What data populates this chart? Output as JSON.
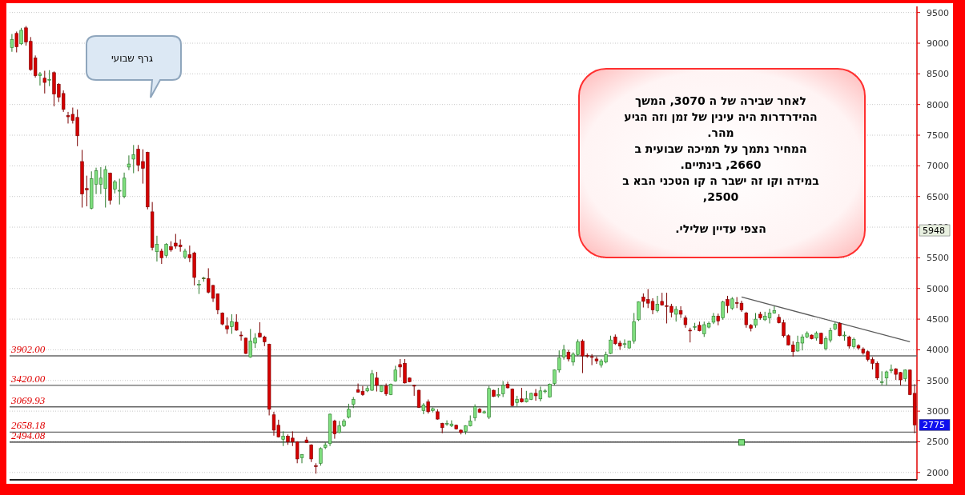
{
  "chart_data": {
    "type": "candlestick",
    "categories": [
      null,
      null,
      null,
      null,
      null,
      null,
      null,
      null,
      null,
      null,
      null,
      null,
      null,
      null,
      null,
      null,
      null,
      null,
      null,
      null,
      null,
      null,
      null,
      null,
      null,
      null,
      null,
      null,
      null,
      null,
      null,
      null,
      null,
      null,
      null,
      null,
      null,
      null,
      null,
      null,
      null,
      null,
      null,
      null,
      null,
      null,
      null,
      null,
      null,
      null,
      null,
      null,
      null,
      null,
      null,
      null,
      null,
      null,
      null,
      null,
      null,
      null,
      null,
      null,
      null,
      null,
      null,
      null,
      null,
      null,
      null,
      null,
      null,
      null,
      null,
      null,
      null,
      null,
      null,
      null,
      null,
      null,
      null,
      null,
      null,
      null,
      null,
      null,
      null,
      null,
      null,
      null,
      null,
      null,
      null,
      null,
      null,
      null,
      null,
      null,
      null,
      null,
      null,
      null,
      null,
      null,
      null,
      null,
      null,
      null,
      null,
      null,
      null,
      null,
      null,
      null,
      null,
      null,
      null,
      null,
      null,
      null,
      null,
      null,
      null,
      null,
      null,
      null,
      null,
      null,
      null,
      null,
      null,
      null,
      null,
      null,
      null,
      null,
      null,
      null,
      null,
      null,
      null,
      null,
      null,
      null,
      null,
      null,
      null,
      null,
      null,
      null,
      null,
      null,
      null,
      null,
      null,
      null,
      null,
      null,
      null,
      null,
      null,
      null,
      null,
      null,
      null,
      null,
      null,
      null,
      null,
      null,
      null,
      null,
      null,
      null,
      null,
      null,
      null,
      null,
      null,
      null,
      null,
      null,
      null,
      null,
      null,
      null,
      null,
      null,
      null,
      null,
      null,
      null
    ],
    "ohlc": [
      [
        8930,
        9150,
        8860,
        9060
      ],
      [
        9160,
        9190,
        8850,
        8940
      ],
      [
        8990,
        9250,
        8970,
        9210
      ],
      [
        9250,
        9280,
        8960,
        9020
      ],
      [
        9030,
        9100,
        8550,
        8570
      ],
      [
        8760,
        8800,
        8440,
        8470
      ],
      [
        8470,
        8530,
        8310,
        8500
      ],
      [
        8430,
        8550,
        8180,
        8360
      ],
      [
        8400,
        8560,
        8300,
        8410
      ],
      [
        8520,
        8540,
        7970,
        8170
      ],
      [
        8330,
        8350,
        8040,
        8120
      ],
      [
        8180,
        8230,
        7880,
        7920
      ],
      [
        7820,
        7880,
        7690,
        7800
      ],
      [
        7840,
        7950,
        7690,
        7740
      ],
      [
        7790,
        7920,
        7320,
        7490
      ],
      [
        7070,
        7260,
        6320,
        6540
      ],
      [
        6630,
        6840,
        6340,
        6610
      ],
      [
        6310,
        6910,
        6290,
        6790
      ],
      [
        6700,
        6970,
        6540,
        6920
      ],
      [
        6700,
        6980,
        6540,
        6800
      ],
      [
        6630,
        7000,
        6320,
        6940
      ],
      [
        6880,
        6890,
        6370,
        6440
      ],
      [
        6620,
        6770,
        6550,
        6740
      ],
      [
        6600,
        6790,
        6370,
        6600
      ],
      [
        6500,
        6890,
        6470,
        6800
      ],
      [
        6980,
        7170,
        6930,
        7030
      ],
      [
        7110,
        7340,
        6880,
        7180
      ],
      [
        7270,
        7340,
        6910,
        7010
      ],
      [
        7070,
        7270,
        6710,
        6960
      ],
      [
        7220,
        7230,
        6290,
        6330
      ],
      [
        6250,
        6410,
        5620,
        5670
      ],
      [
        5600,
        5860,
        5440,
        5720
      ],
      [
        5610,
        5650,
        5400,
        5500
      ],
      [
        5540,
        5740,
        5500,
        5720
      ],
      [
        5680,
        5770,
        5600,
        5630
      ],
      [
        5740,
        5890,
        5650,
        5690
      ],
      [
        5710,
        5800,
        5600,
        5680
      ],
      [
        5510,
        5650,
        5480,
        5610
      ],
      [
        5550,
        5700,
        5430,
        5500
      ],
      [
        5580,
        5600,
        5050,
        5180
      ],
      [
        5070,
        5140,
        4910,
        5070
      ],
      [
        5170,
        5190,
        5110,
        5170
      ],
      [
        5160,
        5330,
        4920,
        4940
      ],
      [
        5050,
        5060,
        4780,
        4840
      ],
      [
        4910,
        4920,
        4580,
        4650
      ],
      [
        4600,
        4610,
        4400,
        4420
      ],
      [
        4390,
        4530,
        4260,
        4340
      ],
      [
        4380,
        4580,
        4260,
        4460
      ],
      [
        4450,
        4580,
        4310,
        4320
      ],
      [
        4240,
        4300,
        4150,
        4230
      ],
      [
        4190,
        4200,
        3930,
        3940
      ],
      [
        3880,
        4340,
        3870,
        4140
      ],
      [
        4110,
        4270,
        4030,
        4190
      ],
      [
        4270,
        4450,
        4200,
        4210
      ],
      [
        4210,
        4230,
        4060,
        4130
      ],
      [
        4090,
        4100,
        2930,
        3030
      ],
      [
        2940,
        2990,
        2600,
        2690
      ],
      [
        2770,
        2860,
        2570,
        2580
      ],
      [
        2540,
        2670,
        2430,
        2590
      ],
      [
        2590,
        2620,
        2450,
        2500
      ],
      [
        2560,
        2670,
        2430,
        2500
      ],
      [
        2500,
        2510,
        2150,
        2220
      ],
      [
        2240,
        2300,
        2150,
        2290
      ],
      [
        2530,
        2580,
        2480,
        2490
      ],
      [
        2450,
        2460,
        2170,
        2220
      ],
      [
        2110,
        2150,
        1980,
        2100
      ],
      [
        2150,
        2410,
        2110,
        2390
      ],
      [
        2410,
        2490,
        2380,
        2450
      ],
      [
        2470,
        2960,
        2430,
        2950
      ],
      [
        2840,
        2860,
        2550,
        2630
      ],
      [
        2650,
        2840,
        2640,
        2760
      ],
      [
        2760,
        2870,
        2740,
        2840
      ],
      [
        2900,
        3120,
        2880,
        3030
      ],
      [
        3110,
        3230,
        3050,
        3190
      ],
      [
        3350,
        3450,
        3300,
        3310
      ],
      [
        3320,
        3410,
        3250,
        3270
      ],
      [
        3330,
        3410,
        3310,
        3370
      ],
      [
        3340,
        3670,
        3330,
        3610
      ],
      [
        3540,
        3640,
        3320,
        3420
      ],
      [
        3320,
        3420,
        3310,
        3410
      ],
      [
        3410,
        3450,
        3250,
        3280
      ],
      [
        3270,
        3450,
        3260,
        3440
      ],
      [
        3490,
        3740,
        3480,
        3670
      ],
      [
        3760,
        3850,
        3550,
        3720
      ],
      [
        3780,
        3850,
        3450,
        3460
      ],
      [
        3540,
        3550,
        3470,
        3480
      ],
      [
        3420,
        3430,
        3250,
        3410
      ],
      [
        3340,
        3350,
        3050,
        3060
      ],
      [
        3010,
        3130,
        2950,
        3100
      ],
      [
        3150,
        3190,
        2960,
        2990
      ],
      [
        3010,
        3060,
        2980,
        3040
      ],
      [
        2990,
        3030,
        2860,
        2870
      ],
      [
        2800,
        2810,
        2640,
        2730
      ],
      [
        2790,
        2850,
        2760,
        2800
      ],
      [
        2760,
        2850,
        2740,
        2790
      ],
      [
        2770,
        2780,
        2700,
        2710
      ],
      [
        2690,
        2700,
        2620,
        2650
      ],
      [
        2670,
        2770,
        2620,
        2760
      ],
      [
        2760,
        2930,
        2750,
        2840
      ],
      [
        2890,
        3110,
        2840,
        3070
      ],
      [
        3030,
        3050,
        2970,
        2980
      ],
      [
        2970,
        3010,
        2960,
        2990
      ],
      [
        2900,
        3410,
        2870,
        3370
      ],
      [
        3340,
        3350,
        3230,
        3240
      ],
      [
        3250,
        3380,
        3220,
        3270
      ],
      [
        3280,
        3490,
        3230,
        3420
      ],
      [
        3440,
        3480,
        3370,
        3380
      ],
      [
        3360,
        3370,
        3080,
        3090
      ],
      [
        3140,
        3250,
        3080,
        3190
      ],
      [
        3200,
        3380,
        3140,
        3150
      ],
      [
        3150,
        3330,
        3140,
        3200
      ],
      [
        3190,
        3300,
        3180,
        3290
      ],
      [
        3290,
        3360,
        3170,
        3250
      ],
      [
        3200,
        3400,
        3160,
        3330
      ],
      [
        3320,
        3360,
        3290,
        3330
      ],
      [
        3230,
        3450,
        3220,
        3440
      ],
      [
        3450,
        3680,
        3420,
        3670
      ],
      [
        3670,
        3990,
        3630,
        3870
      ],
      [
        3880,
        4080,
        3840,
        4000
      ],
      [
        3960,
        4000,
        3810,
        3850
      ],
      [
        3800,
        3960,
        3740,
        3930
      ],
      [
        3920,
        4170,
        3900,
        4130
      ],
      [
        4140,
        4170,
        3620,
        3900
      ],
      [
        3910,
        3940,
        3870,
        3900
      ],
      [
        3890,
        3930,
        3750,
        3880
      ],
      [
        3850,
        3890,
        3770,
        3820
      ],
      [
        3750,
        3850,
        3710,
        3820
      ],
      [
        3800,
        3970,
        3780,
        3920
      ],
      [
        3940,
        4230,
        3930,
        4160
      ],
      [
        4210,
        4250,
        4080,
        4100
      ],
      [
        4110,
        4150,
        4000,
        4060
      ],
      [
        4090,
        4170,
        4030,
        4100
      ],
      [
        4030,
        4150,
        4020,
        4140
      ],
      [
        4140,
        4600,
        4100,
        4460
      ],
      [
        4490,
        4790,
        4470,
        4780
      ],
      [
        4860,
        4920,
        4690,
        4790
      ],
      [
        4820,
        4990,
        4680,
        4760
      ],
      [
        4790,
        4840,
        4580,
        4650
      ],
      [
        4640,
        4880,
        4610,
        4740
      ],
      [
        4790,
        4930,
        4720,
        4730
      ],
      [
        4720,
        4930,
        4430,
        4710
      ],
      [
        4710,
        4750,
        4530,
        4610
      ],
      [
        4580,
        4710,
        4460,
        4660
      ],
      [
        4640,
        4710,
        4520,
        4580
      ],
      [
        4520,
        4560,
        4360,
        4410
      ],
      [
        4320,
        4360,
        4120,
        4310
      ],
      [
        4370,
        4440,
        4320,
        4380
      ],
      [
        4400,
        4460,
        4300,
        4310
      ],
      [
        4260,
        4460,
        4210,
        4410
      ],
      [
        4370,
        4460,
        4350,
        4430
      ],
      [
        4450,
        4600,
        4420,
        4550
      ],
      [
        4550,
        4590,
        4400,
        4470
      ],
      [
        4520,
        4800,
        4490,
        4780
      ],
      [
        4820,
        4880,
        4600,
        4720
      ],
      [
        4680,
        4860,
        4650,
        4830
      ],
      [
        4770,
        4860,
        4680,
        4760
      ],
      [
        4760,
        4800,
        4620,
        4650
      ],
      [
        4600,
        4620,
        4360,
        4410
      ],
      [
        4400,
        4420,
        4300,
        4350
      ],
      [
        4400,
        4600,
        4360,
        4500
      ],
      [
        4580,
        4620,
        4490,
        4520
      ],
      [
        4490,
        4620,
        4470,
        4550
      ],
      [
        4520,
        4670,
        4430,
        4600
      ],
      [
        4600,
        4710,
        4590,
        4640
      ],
      [
        4530,
        4580,
        4430,
        4440
      ],
      [
        4440,
        4490,
        4200,
        4230
      ],
      [
        4230,
        4250,
        4070,
        4080
      ],
      [
        4080,
        4140,
        3890,
        3970
      ],
      [
        3980,
        4230,
        3970,
        4120
      ],
      [
        4110,
        4250,
        3990,
        4210
      ],
      [
        4210,
        4300,
        4190,
        4270
      ],
      [
        4240,
        4250,
        4170,
        4180
      ],
      [
        4190,
        4300,
        4150,
        4270
      ],
      [
        4270,
        4280,
        4090,
        4100
      ],
      [
        4020,
        4220,
        3990,
        4180
      ],
      [
        4160,
        4360,
        4120,
        4310
      ],
      [
        4340,
        4450,
        4320,
        4420
      ],
      [
        4430,
        4450,
        4220,
        4230
      ],
      [
        4230,
        4300,
        4150,
        4240
      ],
      [
        4210,
        4230,
        4020,
        4060
      ],
      [
        4050,
        4200,
        4020,
        4170
      ],
      [
        4070,
        4090,
        4000,
        4030
      ],
      [
        4010,
        4040,
        3920,
        3950
      ],
      [
        3970,
        3990,
        3810,
        3840
      ],
      [
        3840,
        3880,
        3680,
        3780
      ],
      [
        3780,
        3810,
        3510,
        3540
      ],
      [
        3470,
        3650,
        3420,
        3480
      ],
      [
        3540,
        3660,
        3420,
        3640
      ],
      [
        3660,
        3760,
        3620,
        3680
      ],
      [
        3690,
        3700,
        3510,
        3600
      ],
      [
        3630,
        3640,
        3420,
        3510
      ],
      [
        3530,
        3680,
        3480,
        3670
      ],
      [
        3670,
        3680,
        3260,
        3270
      ],
      [
        3290,
        3440,
        2640,
        2775
      ]
    ],
    "colors": [
      "#7fdf7f",
      "#d40000",
      "#7fdf7f",
      "#d40000",
      "#d40000",
      "#d40000",
      "#7fdf7f",
      "#d40000",
      "#7fdf7f",
      "#d40000",
      "#d40000",
      "#d40000",
      "#d40000",
      "#d40000",
      "#d40000",
      "#d40000",
      "#d40000",
      "#7fdf7f",
      "#7fdf7f",
      "#7fdf7f",
      "#7fdf7f",
      "#d40000",
      "#7fdf7f",
      "#7fdf7f",
      "#7fdf7f",
      "#7fdf7f",
      "#7fdf7f",
      "#d40000",
      "#d40000",
      "#d40000",
      "#d40000",
      "#7fdf7f",
      "#d40000",
      "#7fdf7f",
      "#d40000",
      "#d40000",
      "#d40000",
      "#7fdf7f",
      "#d40000",
      "#d40000",
      "#7fdf7f",
      "#d40000",
      "#d40000",
      "#d40000",
      "#d40000",
      "#d40000",
      "#d40000",
      "#7fdf7f",
      "#d40000",
      "#d40000",
      "#d40000",
      "#7fdf7f",
      "#7fdf7f",
      "#d40000",
      "#d40000",
      "#d40000",
      "#d40000",
      "#d40000",
      "#7fdf7f",
      "#d40000",
      "#d40000",
      "#d40000",
      "#7fdf7f",
      "#d40000",
      "#d40000",
      "#d40000",
      "#7fdf7f",
      "#7fdf7f",
      "#7fdf7f",
      "#d40000",
      "#7fdf7f",
      "#7fdf7f",
      "#7fdf7f",
      "#7fdf7f",
      "#d40000",
      "#d40000",
      "#7fdf7f",
      "#7fdf7f",
      "#d40000",
      "#7fdf7f",
      "#d40000",
      "#7fdf7f",
      "#7fdf7f",
      "#d40000",
      "#d40000",
      "#d40000",
      "#d40000",
      "#d40000",
      "#7fdf7f",
      "#d40000",
      "#7fdf7f",
      "#d40000",
      "#d40000",
      "#7fdf7f",
      "#7fdf7f",
      "#d40000",
      "#d40000",
      "#7fdf7f",
      "#7fdf7f",
      "#7fdf7f",
      "#d40000",
      "#7fdf7f",
      "#7fdf7f",
      "#d40000",
      "#7fdf7f",
      "#7fdf7f",
      "#d40000",
      "#d40000",
      "#7fdf7f",
      "#d40000",
      "#7fdf7f",
      "#7fdf7f",
      "#d40000",
      "#7fdf7f",
      "#7fdf7f",
      "#7fdf7f",
      "#7fdf7f",
      "#7fdf7f",
      "#7fdf7f",
      "#d40000",
      "#7fdf7f",
      "#7fdf7f",
      "#d40000",
      "#d40000",
      "#d40000",
      "#d40000",
      "#7fdf7f",
      "#7fdf7f",
      "#7fdf7f",
      "#d40000",
      "#d40000",
      "#7fdf7f",
      "#7fdf7f",
      "#7fdf7f",
      "#7fdf7f",
      "#d40000",
      "#d40000",
      "#d40000",
      "#7fdf7f",
      "#d40000",
      "#d40000",
      "#d40000",
      "#7fdf7f",
      "#d40000",
      "#d40000",
      "#d40000",
      "#7fdf7f",
      "#d40000",
      "#7fdf7f",
      "#7fdf7f",
      "#7fdf7f",
      "#d40000",
      "#7fdf7f",
      "#d40000",
      "#7fdf7f",
      "#d40000",
      "#d40000",
      "#d40000",
      "#d40000",
      "#7fdf7f",
      "#d40000",
      "#7fdf7f",
      "#7fdf7f",
      "#7fdf7f",
      "#d40000",
      "#d40000",
      "#d40000",
      "#d40000",
      "#7fdf7f",
      "#7fdf7f",
      "#7fdf7f",
      "#d40000",
      "#7fdf7f",
      "#d40000",
      "#7fdf7f",
      "#7fdf7f",
      "#7fdf7f",
      "#d40000",
      "#7fdf7f",
      "#d40000",
      "#7fdf7f",
      "#d40000",
      "#d40000",
      "#d40000",
      "#d40000",
      "#d40000",
      "#7fdf7f",
      "#7fdf7f",
      "#7fdf7f",
      "#d40000",
      "#d40000",
      "#7fdf7f",
      "#d40000",
      "#d40000"
    ],
    "series": [
      {
        "type": "line",
        "values": [
          null,
          null,
          null,
          null,
          null,
          null,
          null,
          null,
          null,
          null,
          null,
          null,
          null,
          null,
          null,
          null,
          null,
          null,
          null,
          null,
          null,
          null,
          null,
          null,
          null,
          null,
          null,
          null,
          null,
          null,
          null,
          null,
          null,
          null,
          null,
          null,
          null,
          null,
          null,
          null,
          null,
          null,
          null,
          null,
          null,
          null,
          null,
          null,
          null,
          null,
          null,
          null,
          null,
          null,
          null,
          null,
          null,
          null,
          null,
          null,
          null,
          null,
          null,
          null,
          null,
          null,
          null,
          null,
          null,
          null,
          null,
          null,
          null,
          null,
          null,
          null,
          null,
          null,
          null,
          null,
          null,
          null,
          null,
          null,
          null,
          null,
          null,
          null,
          null,
          null,
          null,
          null,
          null,
          null,
          null,
          null,
          null,
          null,
          null,
          null,
          null,
          null,
          null,
          null,
          null,
          null,
          null,
          null,
          null,
          null,
          null,
          null,
          null,
          null,
          null,
          null,
          null,
          null,
          null,
          null,
          null,
          null,
          null,
          null,
          null,
          null,
          null,
          null,
          null,
          null,
          null,
          null,
          null,
          null,
          null,
          null,
          null,
          null,
          null,
          null,
          null,
          null,
          null,
          null,
          null,
          null,
          null,
          null,
          null,
          null,
          null,
          null,
          null,
          null,
          null,
          null,
          4860,
          null,
          null,
          null,
          null,
          null,
          null,
          null,
          null,
          null,
          null,
          null,
          null,
          null,
          null,
          null,
          null,
          null,
          null,
          null,
          null,
          null,
          null,
          null,
          null,
          null,
          null,
          null,
          null,
          null,
          null,
          null,
          null,
          null,
          null,
          null,
          4130,
          null
        ],
        "color": "#5a5a5a"
      },
      {
        "type": "scatter",
        "values": [
          null,
          null,
          null,
          null,
          null,
          null,
          null,
          null,
          null,
          null,
          null,
          null,
          null,
          null,
          null,
          null,
          null,
          null,
          null,
          null,
          null,
          null,
          null,
          null,
          null,
          null,
          null,
          null,
          null,
          null,
          null,
          null,
          null,
          null,
          null,
          null,
          null,
          null,
          null,
          null,
          null,
          null,
          null,
          null,
          null,
          null,
          null,
          null,
          null,
          null,
          null,
          null,
          null,
          null,
          null,
          null,
          null,
          null,
          null,
          null,
          null,
          null,
          null,
          null,
          null,
          null,
          null,
          null,
          null,
          null,
          null,
          null,
          null,
          null,
          null,
          null,
          null,
          null,
          null,
          null,
          null,
          null,
          null,
          null,
          null,
          null,
          null,
          null,
          null,
          null,
          null,
          null,
          null,
          null,
          null,
          null,
          null,
          null,
          null,
          null,
          null,
          null,
          null,
          null,
          null,
          null,
          null,
          null,
          null,
          null,
          null,
          null,
          null,
          null,
          null,
          null,
          null,
          null,
          null,
          null,
          null,
          null,
          null,
          null,
          null,
          null,
          null,
          null,
          null,
          null,
          null,
          null,
          null,
          null,
          null,
          null,
          null,
          null,
          null,
          null,
          null,
          null,
          null,
          null,
          null,
          null,
          null,
          null,
          null,
          null,
          null,
          null,
          null,
          null,
          null,
          null,
          2490,
          null,
          null,
          null,
          null,
          null,
          null,
          null,
          null,
          null,
          null,
          null,
          null,
          null,
          null,
          null,
          null,
          null,
          null,
          null,
          null,
          null,
          null,
          null,
          null,
          null,
          null,
          null,
          null,
          null,
          null,
          null,
          null,
          null,
          null,
          null,
          null,
          null
        ],
        "color": "#7fdf7f",
        "marker": "square"
      }
    ],
    "ylim": [
      1880,
      9600
    ],
    "yticks": [
      2000,
      2500,
      3000,
      3500,
      4000,
      4500,
      5000,
      5500,
      6000,
      6500,
      7000,
      7500,
      8000,
      8500,
      9000,
      9500
    ],
    "grid": "y",
    "ref_lines": [
      {
        "axis": "y",
        "value": 3902,
        "label": "3902.00",
        "color": "#666666"
      },
      {
        "axis": "y",
        "value": 3420,
        "label": "3420.00",
        "color": "#666666"
      },
      {
        "axis": "y",
        "value": 3069.93,
        "label": "3069.93",
        "color": "#666666"
      },
      {
        "axis": "y",
        "value": 2658.18,
        "label": "2658.18",
        "color": "#666666"
      },
      {
        "axis": "y",
        "value": 2494.08,
        "label": "2494.08",
        "color": "#222222"
      }
    ],
    "annotations": [
      "גרף שבועי",
      "לאחר  שבירה  של ה 3070,  המשך\nההידרדרות היה עינין של זמן וזה הגיע\nמהר.\nהמחיר נתמך על  תמיכה שבועית ב\n2660,  בינתיים.\nבמידה וקו זה ישבר   ה קו הטכני הבא ב\n2500,\n\nהצפי עדיין  שלילי.",
      {
        "text": "2775",
        "y": 2775
      },
      {
        "text": "5948",
        "y": 5948
      }
    ]
  }
}
